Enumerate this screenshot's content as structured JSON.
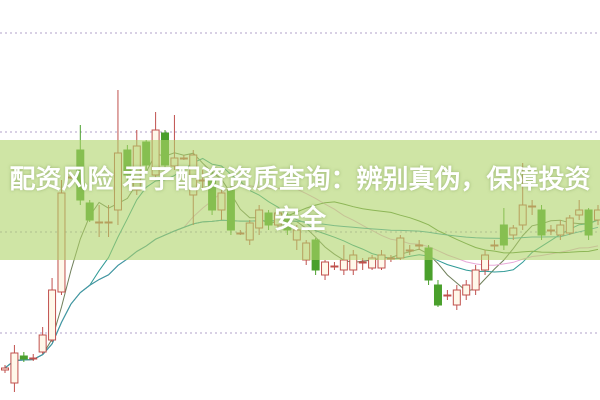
{
  "title": "配资风险 君子配资资质查询：辨别真伪，保障投资安全",
  "chart_data": {
    "type": "candlestick",
    "candle_format": [
      "open",
      "high",
      "low",
      "close"
    ],
    "candles": [
      [
        3.0,
        3.5,
        2.7,
        3.2
      ],
      [
        1.7,
        5.5,
        0.8,
        4.7
      ],
      [
        4.4,
        4.8,
        3.8,
        4.1
      ],
      [
        4.2,
        4.6,
        3.9,
        4.2
      ],
      [
        4.8,
        7.3,
        4.6,
        6.5
      ],
      [
        6.0,
        12.2,
        5.8,
        11.0
      ],
      [
        10.8,
        22.0,
        10.5,
        20.7
      ],
      [
        22.3,
        22.5,
        22.1,
        22.3
      ],
      [
        25.0,
        27.5,
        19.5,
        20.0
      ],
      [
        19.7,
        20.0,
        17.8,
        18.0
      ],
      [
        17.8,
        19.5,
        16.3,
        17.8
      ],
      [
        17.8,
        19.5,
        16.3,
        17.8
      ],
      [
        19.0,
        31.0,
        17.5,
        24.7
      ],
      [
        25.0,
        25.5,
        21.5,
        22.5
      ],
      [
        21.0,
        27.0,
        20.5,
        25.4
      ],
      [
        25.8,
        26.0,
        23.0,
        23.5
      ],
      [
        22.5,
        28.8,
        22.0,
        27.0
      ],
      [
        26.7,
        27.0,
        23.0,
        23.5
      ],
      [
        23.4,
        28.5,
        23.0,
        24.2
      ],
      [
        24.2,
        24.5,
        24.0,
        24.2
      ],
      [
        20.5,
        25.0,
        17.5,
        24.5
      ],
      [
        22.0,
        23.0,
        21.0,
        22.0
      ],
      [
        22.0,
        23.0,
        18.5,
        19.0
      ],
      [
        19.0,
        21.0,
        18.0,
        20.7
      ],
      [
        21.0,
        21.5,
        16.5,
        17.0
      ],
      [
        16.7,
        17.0,
        16.5,
        16.7
      ],
      [
        16.0,
        18.0,
        15.5,
        17.7
      ],
      [
        17.2,
        19.5,
        16.5,
        19.0
      ],
      [
        18.7,
        19.0,
        17.0,
        17.5
      ],
      [
        17.5,
        19.2,
        17.0,
        18.7
      ],
      [
        18.5,
        18.8,
        16.5,
        17.0
      ],
      [
        16.0,
        17.5,
        15.0,
        17.0
      ],
      [
        14.0,
        16.0,
        13.5,
        15.7
      ],
      [
        16.0,
        16.2,
        12.5,
        13.0
      ],
      [
        12.5,
        14.0,
        12.0,
        13.8
      ],
      [
        13.4,
        13.8,
        13.0,
        13.4
      ],
      [
        13.0,
        15.5,
        12.5,
        14.0
      ],
      [
        13.0,
        15.0,
        12.5,
        14.5
      ],
      [
        13.8,
        14.2,
        13.0,
        13.8
      ],
      [
        13.2,
        14.5,
        13.0,
        14.2
      ],
      [
        13.2,
        15.0,
        13.0,
        14.5
      ],
      [
        14.2,
        14.5,
        13.8,
        14.2
      ],
      [
        14.2,
        16.5,
        14.0,
        16.2
      ],
      [
        15.0,
        15.5,
        14.5,
        15.0
      ],
      [
        15.5,
        16.0,
        15.0,
        15.5
      ],
      [
        15.2,
        15.5,
        11.5,
        12.0
      ],
      [
        11.5,
        12.0,
        9.3,
        9.5
      ],
      [
        10.5,
        11.0,
        10.0,
        10.5
      ],
      [
        9.5,
        11.5,
        9.0,
        11.0
      ],
      [
        10.5,
        12.0,
        10.0,
        11.5
      ],
      [
        11.0,
        13.5,
        10.5,
        13.0
      ],
      [
        13.0,
        15.0,
        12.5,
        14.5
      ],
      [
        15.5,
        16.0,
        15.0,
        15.5
      ],
      [
        17.5,
        19.2,
        15.0,
        15.5
      ],
      [
        16.5,
        17.5,
        16.0,
        17.2
      ],
      [
        17.5,
        23.7,
        17.0,
        19.5
      ],
      [
        19.4,
        20.0,
        18.5,
        19.4
      ],
      [
        19.0,
        19.5,
        16.0,
        16.5
      ],
      [
        17.0,
        17.5,
        16.5,
        17.0
      ],
      [
        16.5,
        18.0,
        16.0,
        17.5
      ],
      [
        16.7,
        18.5,
        16.5,
        18.2
      ],
      [
        18.5,
        20.0,
        18.0,
        19.0
      ],
      [
        19.0,
        19.2,
        16.0,
        16.5
      ],
      [
        18.0,
        19.5,
        17.5,
        19.0
      ]
    ],
    "moving_averages": [
      5,
      10,
      20,
      30,
      60
    ],
    "ylim": [
      0,
      40
    ],
    "grid": "horizontal-dotted",
    "colors": {
      "up": "#c0504d",
      "down": "#4aa02c",
      "ma": [
        "#6f7f5a",
        "#2f9a96",
        "#e8a8d8",
        "#5a8a3a",
        "#3a9ab0"
      ],
      "grid": "#b0a0c8",
      "banner": "#afd469"
    }
  }
}
